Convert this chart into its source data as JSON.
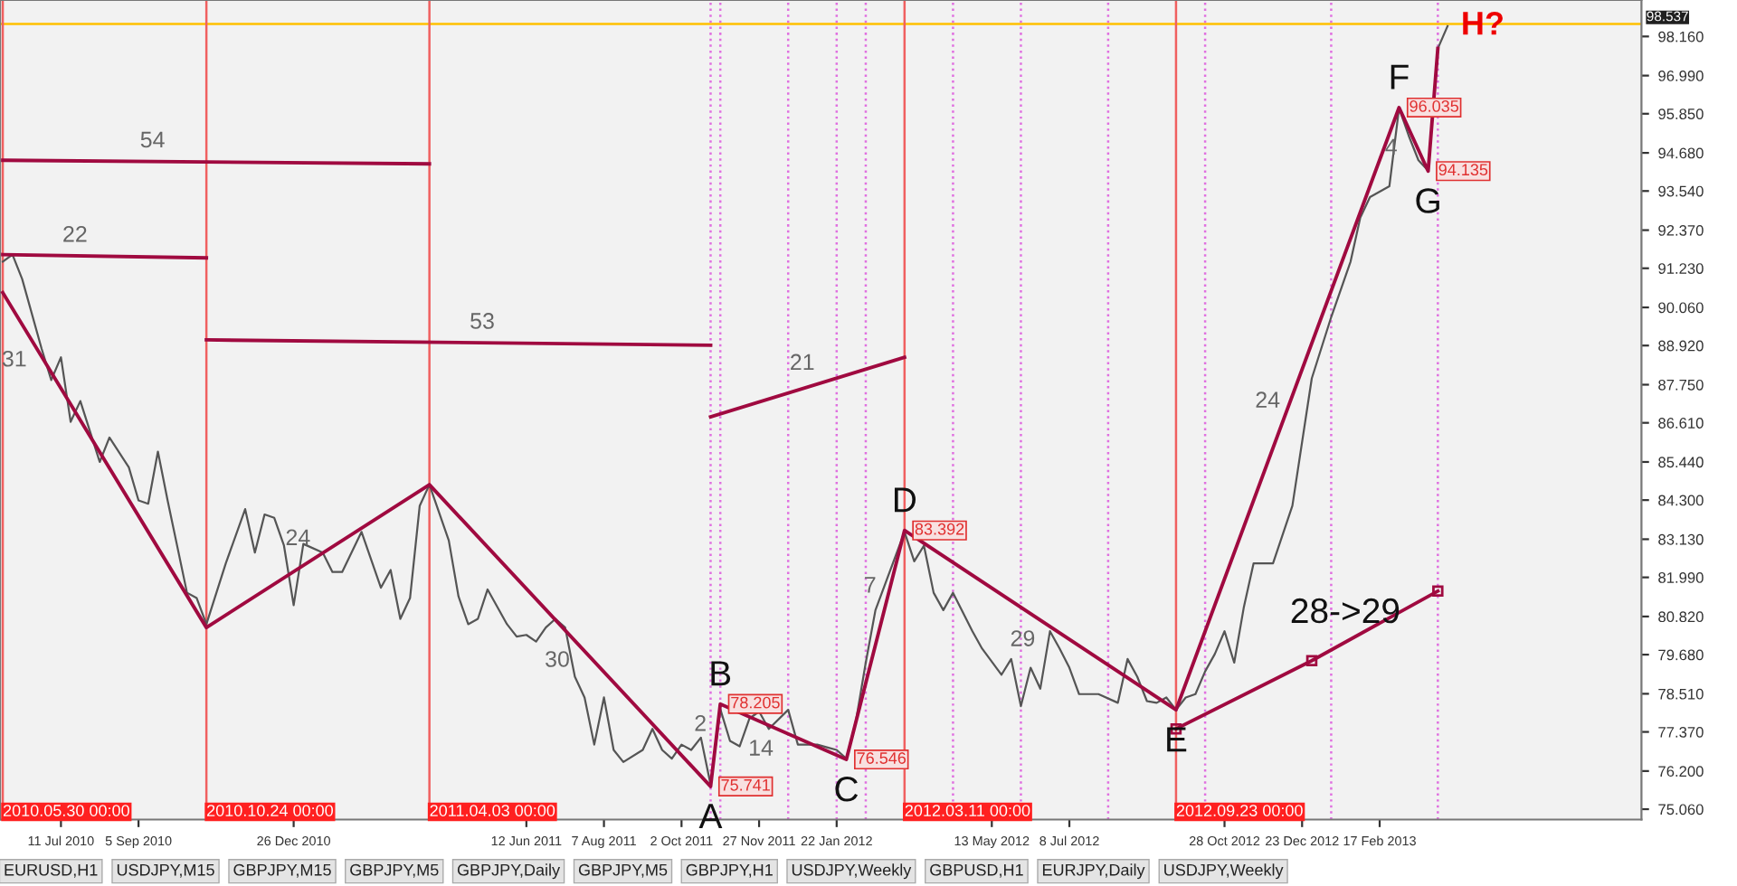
{
  "chart_data": {
    "type": "line",
    "xlim": [
      "2010-05-28",
      "2013-08-25"
    ],
    "ylim": [
      74.75,
      99.25
    ],
    "xticks": [
      {
        "value": "2010-07-11",
        "label": "11 Jul 2010"
      },
      {
        "value": "2010-09-05",
        "label": "5 Sep 2010"
      },
      {
        "value": "2010-12-26",
        "label": "26 Dec 2010"
      },
      {
        "value": "2011-06-12",
        "label": "12 Jun 2011"
      },
      {
        "value": "2011-08-07",
        "label": "7 Aug 2011"
      },
      {
        "value": "2011-10-02",
        "label": "2 Oct 2011"
      },
      {
        "value": "2011-11-27",
        "label": "27 Nov 2011"
      },
      {
        "value": "2012-01-22",
        "label": "22 Jan 2012"
      },
      {
        "value": "2012-05-13",
        "label": "13 May 2012"
      },
      {
        "value": "2012-07-08",
        "label": "8 Jul 2012"
      },
      {
        "value": "2012-10-28",
        "label": "28 Oct 2012"
      },
      {
        "value": "2012-12-23",
        "label": "23 Dec 2012"
      },
      {
        "value": "2013-02-17",
        "label": "17 Feb 2013"
      }
    ],
    "yticks": [
      {
        "value": 75.06,
        "label": "75.060"
      },
      {
        "value": 76.2,
        "label": "76.200"
      },
      {
        "value": 77.37,
        "label": "77.370"
      },
      {
        "value": 78.51,
        "label": "78.510"
      },
      {
        "value": 79.68,
        "label": "79.680"
      },
      {
        "value": 80.82,
        "label": "80.820"
      },
      {
        "value": 81.99,
        "label": "81.990"
      },
      {
        "value": 83.13,
        "label": "83.130"
      },
      {
        "value": 84.3,
        "label": "84.300"
      },
      {
        "value": 85.44,
        "label": "85.440"
      },
      {
        "value": 86.61,
        "label": "86.610"
      },
      {
        "value": 87.75,
        "label": "87.750"
      },
      {
        "value": 88.92,
        "label": "88.920"
      },
      {
        "value": 90.06,
        "label": "90.060"
      },
      {
        "value": 91.23,
        "label": "91.230"
      },
      {
        "value": 92.37,
        "label": "92.370"
      },
      {
        "value": 93.54,
        "label": "93.540"
      },
      {
        "value": 94.68,
        "label": "94.680"
      },
      {
        "value": 95.85,
        "label": "95.850"
      },
      {
        "value": 96.99,
        "label": "96.990"
      },
      {
        "value": 98.16,
        "label": "98.160"
      }
    ],
    "grid": false,
    "series": [
      {
        "color": "#555555",
        "x": [
          "2010-05-30",
          "2010-06-06",
          "2010-06-13",
          "2010-06-27",
          "2010-07-04",
          "2010-07-11",
          "2010-07-18",
          "2010-07-25",
          "2010-08-08",
          "2010-08-15",
          "2010-08-29",
          "2010-09-05",
          "2010-09-12",
          "2010-09-19",
          "2010-09-26",
          "2010-10-10",
          "2010-10-17",
          "2010-10-24",
          "2010-11-07",
          "2010-11-21",
          "2010-11-28",
          "2010-12-05",
          "2010-12-12",
          "2010-12-19",
          "2010-12-26",
          "2011-01-02",
          "2011-01-16",
          "2011-01-23",
          "2011-01-30",
          "2011-02-13",
          "2011-02-27",
          "2011-03-06",
          "2011-03-13",
          "2011-03-20",
          "2011-03-27",
          "2011-04-03",
          "2011-04-17",
          "2011-04-24",
          "2011-05-01",
          "2011-05-08",
          "2011-05-15",
          "2011-05-29",
          "2011-06-05",
          "2011-06-12",
          "2011-06-19",
          "2011-06-26",
          "2011-07-03",
          "2011-07-10",
          "2011-07-17",
          "2011-07-24",
          "2011-07-31",
          "2011-08-07",
          "2011-08-14",
          "2011-08-21",
          "2011-09-04",
          "2011-09-11",
          "2011-09-18",
          "2011-09-25",
          "2011-10-02",
          "2011-10-09",
          "2011-10-16",
          "2011-10-23",
          "2011-10-30",
          "2011-11-06",
          "2011-11-13",
          "2011-11-20",
          "2011-11-27",
          "2011-12-04",
          "2011-12-18",
          "2011-12-25",
          "2012-01-08",
          "2012-01-15",
          "2012-01-22",
          "2012-01-29",
          "2012-02-05",
          "2012-02-12",
          "2012-02-19",
          "2012-03-04",
          "2012-03-11",
          "2012-03-18",
          "2012-03-25",
          "2012-04-01",
          "2012-04-08",
          "2012-04-15",
          "2012-04-29",
          "2012-05-06",
          "2012-05-20",
          "2012-05-27",
          "2012-06-03",
          "2012-06-10",
          "2012-06-17",
          "2012-06-24",
          "2012-07-01",
          "2012-07-08",
          "2012-07-15",
          "2012-07-29",
          "2012-08-12",
          "2012-08-19",
          "2012-08-26",
          "2012-09-02",
          "2012-09-09",
          "2012-09-16",
          "2012-09-23",
          "2012-09-30",
          "2012-10-07",
          "2012-10-14",
          "2012-10-21",
          "2012-10-28",
          "2012-11-04",
          "2012-11-11",
          "2012-11-18",
          "2012-12-02",
          "2012-12-16",
          "2012-12-30",
          "2013-01-13",
          "2013-01-27",
          "2013-02-03",
          "2013-02-10",
          "2013-02-17",
          "2013-02-24",
          "2013-03-03",
          "2013-03-10",
          "2013-03-17",
          "2013-03-24",
          "2013-03-31",
          "2013-04-07"
        ],
        "values": [
          91.43,
          91.64,
          90.91,
          88.83,
          87.89,
          88.57,
          86.64,
          87.26,
          85.44,
          86.17,
          85.28,
          84.29,
          84.19,
          85.75,
          84.29,
          81.53,
          81.37,
          80.59,
          82.41,
          84.03,
          82.73,
          83.87,
          83.77,
          82.94,
          81.16,
          82.99,
          82.73,
          82.15,
          82.15,
          83.35,
          81.68,
          82.21,
          80.75,
          81.37,
          84.13,
          84.76,
          83.09,
          81.42,
          80.59,
          80.75,
          81.63,
          80.59,
          80.22,
          80.27,
          80.07,
          80.49,
          80.75,
          80.49,
          79.02,
          78.4,
          76.99,
          78.4,
          76.83,
          76.47,
          76.83,
          77.46,
          76.83,
          76.57,
          76.99,
          76.83,
          77.2,
          75.79,
          78.05,
          77.1,
          76.94,
          77.77,
          77.98,
          77.46,
          78.03,
          76.99,
          76.99,
          76.91,
          76.83,
          76.57,
          77.72,
          79.44,
          81.01,
          82.57,
          83.35,
          82.47,
          82.94,
          81.53,
          81.01,
          81.53,
          80.38,
          79.86,
          79.08,
          79.55,
          78.14,
          79.29,
          78.66,
          80.38,
          79.86,
          79.29,
          78.5,
          78.5,
          78.24,
          79.55,
          79.02,
          78.29,
          78.24,
          78.4,
          78.03,
          78.4,
          78.5,
          79.18,
          79.7,
          80.38,
          79.44,
          81.11,
          82.41,
          82.41,
          84.13,
          87.94,
          89.77,
          91.43,
          92.74,
          93.36,
          93.52,
          93.68,
          96.02,
          95.19,
          94.46,
          94.15,
          97.8,
          98.47
        ]
      },
      {
        "color": "#a00a40",
        "x": [
          "2010-05-30",
          "2010-10-24",
          "2011-04-03",
          "2011-10-23",
          "2011-10-30",
          "2012-01-29",
          "2012-03-11",
          "2012-09-23",
          "2013-03-03",
          "2013-03-24",
          "2013-03-31"
        ],
        "values": [
          90.5,
          80.49,
          84.76,
          75.741,
          78.205,
          76.546,
          83.392,
          78.03,
          96.035,
          94.135,
          97.8
        ],
        "value_labels": [
          null,
          null,
          null,
          "75.741",
          "78.205",
          "76.546",
          "83.392",
          null,
          "96.035",
          "94.135",
          null
        ]
      },
      {
        "color": "#a00a40",
        "x": [
          "2010-05-30",
          "2011-04-03"
        ],
        "values": [
          94.46,
          94.35
        ]
      },
      {
        "color": "#a00a40",
        "x": [
          "2010-05-30",
          "2010-10-24"
        ],
        "values": [
          91.64,
          91.54
        ]
      },
      {
        "color": "#a00a40",
        "x": [
          "2010-10-24",
          "2011-10-23"
        ],
        "values": [
          89.09,
          88.93
        ]
      },
      {
        "color": "#a00a40",
        "x": [
          "2011-10-23",
          "2012-03-11"
        ],
        "values": [
          86.79,
          88.57
        ]
      },
      {
        "color": "#a00a40",
        "marker": "square",
        "x": [
          "2012-09-23",
          "2012-12-30",
          "2013-03-31"
        ],
        "values": [
          77.46,
          79.5,
          81.58
        ]
      }
    ],
    "ref_lines": [
      {
        "axis": "y",
        "value": 98.537,
        "label": "98.537",
        "color": "#ffc000",
        "line_style": "solid"
      },
      {
        "axis": "x",
        "value": "2010-05-30",
        "label": "2010.05.30 00:00",
        "color": "#f06060",
        "line_style": "solid"
      },
      {
        "axis": "x",
        "value": "2010-10-24",
        "label": "2010.10.24 00:00",
        "color": "#f06060",
        "line_style": "solid"
      },
      {
        "axis": "x",
        "value": "2011-04-03",
        "label": "2011.04.03 00:00",
        "color": "#f06060",
        "line_style": "solid"
      },
      {
        "axis": "x",
        "value": "2012-03-11",
        "label": "2012.03.11 00:00",
        "color": "#f06060",
        "line_style": "solid"
      },
      {
        "axis": "x",
        "value": "2012-09-23",
        "label": "2012.09.23 00:00",
        "color": "#f06060",
        "line_style": "solid"
      },
      {
        "axis": "x",
        "value": "2011-10-23",
        "label": null,
        "color": "#e070e0",
        "line_style": "dotted"
      },
      {
        "axis": "x",
        "value": "2011-10-30",
        "label": null,
        "color": "#e070e0",
        "line_style": "dotted"
      },
      {
        "axis": "x",
        "value": "2011-12-18",
        "label": null,
        "color": "#e070e0",
        "line_style": "dotted"
      },
      {
        "axis": "x",
        "value": "2012-01-22",
        "label": null,
        "color": "#e070e0",
        "line_style": "dotted"
      },
      {
        "axis": "x",
        "value": "2012-02-12",
        "label": null,
        "color": "#e070e0",
        "line_style": "dotted"
      },
      {
        "axis": "x",
        "value": "2012-04-15",
        "label": null,
        "color": "#e070e0",
        "line_style": "dotted"
      },
      {
        "axis": "x",
        "value": "2012-06-03",
        "label": null,
        "color": "#e070e0",
        "line_style": "dotted"
      },
      {
        "axis": "x",
        "value": "2012-08-05",
        "label": null,
        "color": "#e070e0",
        "line_style": "dotted"
      },
      {
        "axis": "x",
        "value": "2012-10-14",
        "label": null,
        "color": "#e070e0",
        "line_style": "dotted"
      },
      {
        "axis": "x",
        "value": "2013-01-13",
        "label": null,
        "color": "#e070e0",
        "line_style": "dotted"
      },
      {
        "axis": "x",
        "value": "2013-03-31",
        "label": null,
        "color": "#e070e0",
        "line_style": "dotted"
      }
    ],
    "annotations": [
      {
        "text": "54",
        "x": "2010-09-26",
        "y": 94.418
      },
      {
        "text": "22",
        "x": "2010-08-01",
        "y": 91.597
      },
      {
        "text": "53",
        "x": "2011-05-22",
        "y": 88.998
      },
      {
        "text": "31",
        "x": "2010-06-20",
        "y": 89.07
      },
      {
        "text": "24",
        "x": "2011-01-09",
        "y": 82.53
      },
      {
        "text": "30",
        "x": "2011-07-17",
        "y": 80.09
      },
      {
        "text": "21",
        "x": "2012-01-08",
        "y": 87.769
      },
      {
        "text": "A",
        "x": "2011-10-23",
        "y": 75.741
      },
      {
        "text": "B",
        "x": "2011-10-30",
        "y": 78.205
      },
      {
        "text": "2",
        "x": "2011-10-26T12:00",
        "y": 76.973
      },
      {
        "text": "14",
        "x": "2011-12-11",
        "y": 77.439
      },
      {
        "text": "C",
        "x": "2012-01-29",
        "y": 76.546
      },
      {
        "text": "7",
        "x": "2012-02-26",
        "y": 81.11
      },
      {
        "text": "D",
        "x": "2012-03-11",
        "y": 83.392
      },
      {
        "text": "29",
        "x": "2012-06-17",
        "y": 80.711
      },
      {
        "text": "E",
        "x": "2012-09-23",
        "y": 78.03
      },
      {
        "text": "24",
        "x": "2012-12-09",
        "y": 86.641
      },
      {
        "text": "F",
        "x": "2013-03-03",
        "y": 96.035
      },
      {
        "text": "4",
        "x": "2013-03-10",
        "y": 95.402
      },
      {
        "text": "G",
        "x": "2013-03-24",
        "y": 94.135
      },
      {
        "text": "H?",
        "x": "2013-04-07",
        "y": 98.47
      },
      {
        "text": "28->29",
        "x": "2013-02-03",
        "y": 80.3
      },
      "EURUSD,H1",
      "USDJPY,M15",
      "GBPJPY,M15",
      "GBPJPY,M5",
      "GBPJPY,Daily",
      "GBPJPY,M5",
      "GBPJPY,H1",
      "USDJPY,Weekly",
      "GBPUSD,H1",
      "EURJPY,Daily",
      "USDJPY,Weekly"
    ]
  }
}
